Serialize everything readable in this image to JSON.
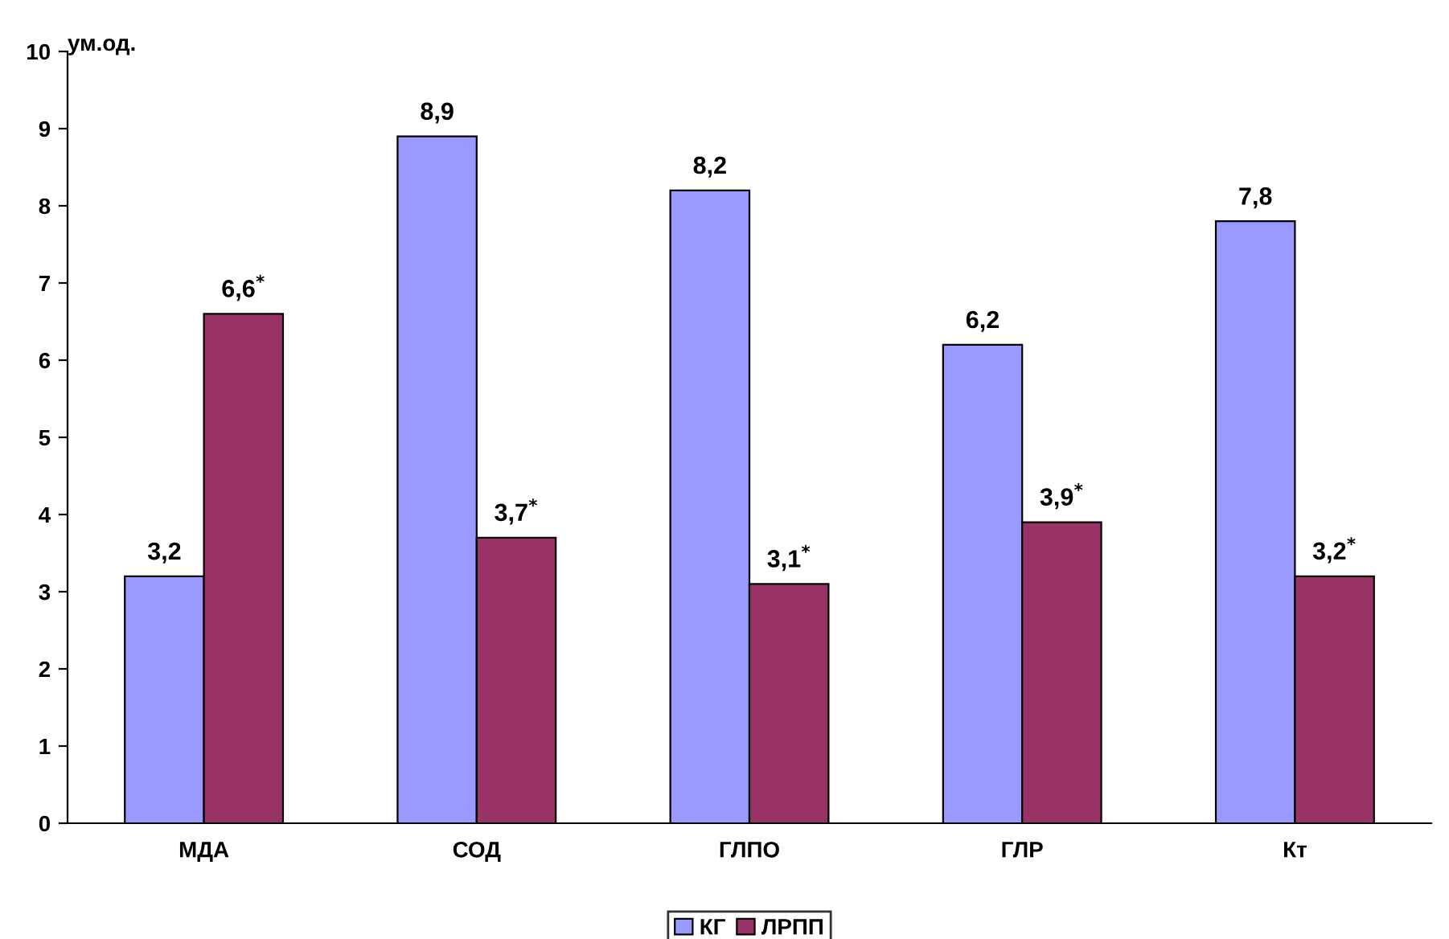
{
  "chart_data": {
    "type": "bar",
    "ylabel": "ум.од.",
    "categories": [
      "МДА",
      "СОД",
      "ГЛПО",
      "ГЛР",
      "Кт"
    ],
    "series": [
      {
        "name": "КГ",
        "color": "#9999ff",
        "values": [
          3.2,
          8.9,
          8.2,
          6.2,
          7.8
        ],
        "value_labels": [
          "3,2",
          "8,9",
          "8,2",
          "6,2",
          "7,8"
        ]
      },
      {
        "name": "ЛРПП",
        "color": "#993366",
        "values": [
          6.6,
          3.7,
          3.1,
          3.9,
          3.2
        ],
        "value_labels": [
          "6,6$^{*}$",
          "3,7$^{*}$",
          "3,1$^{*}$",
          "3,9$^{*}$",
          "3,2$^{*}$"
        ]
      }
    ],
    "ylim": [
      0,
      10
    ],
    "yticks": [
      0,
      1,
      2,
      3,
      4,
      5,
      6,
      7,
      8,
      9,
      10
    ],
    "grid": false,
    "legend": "bottom"
  }
}
